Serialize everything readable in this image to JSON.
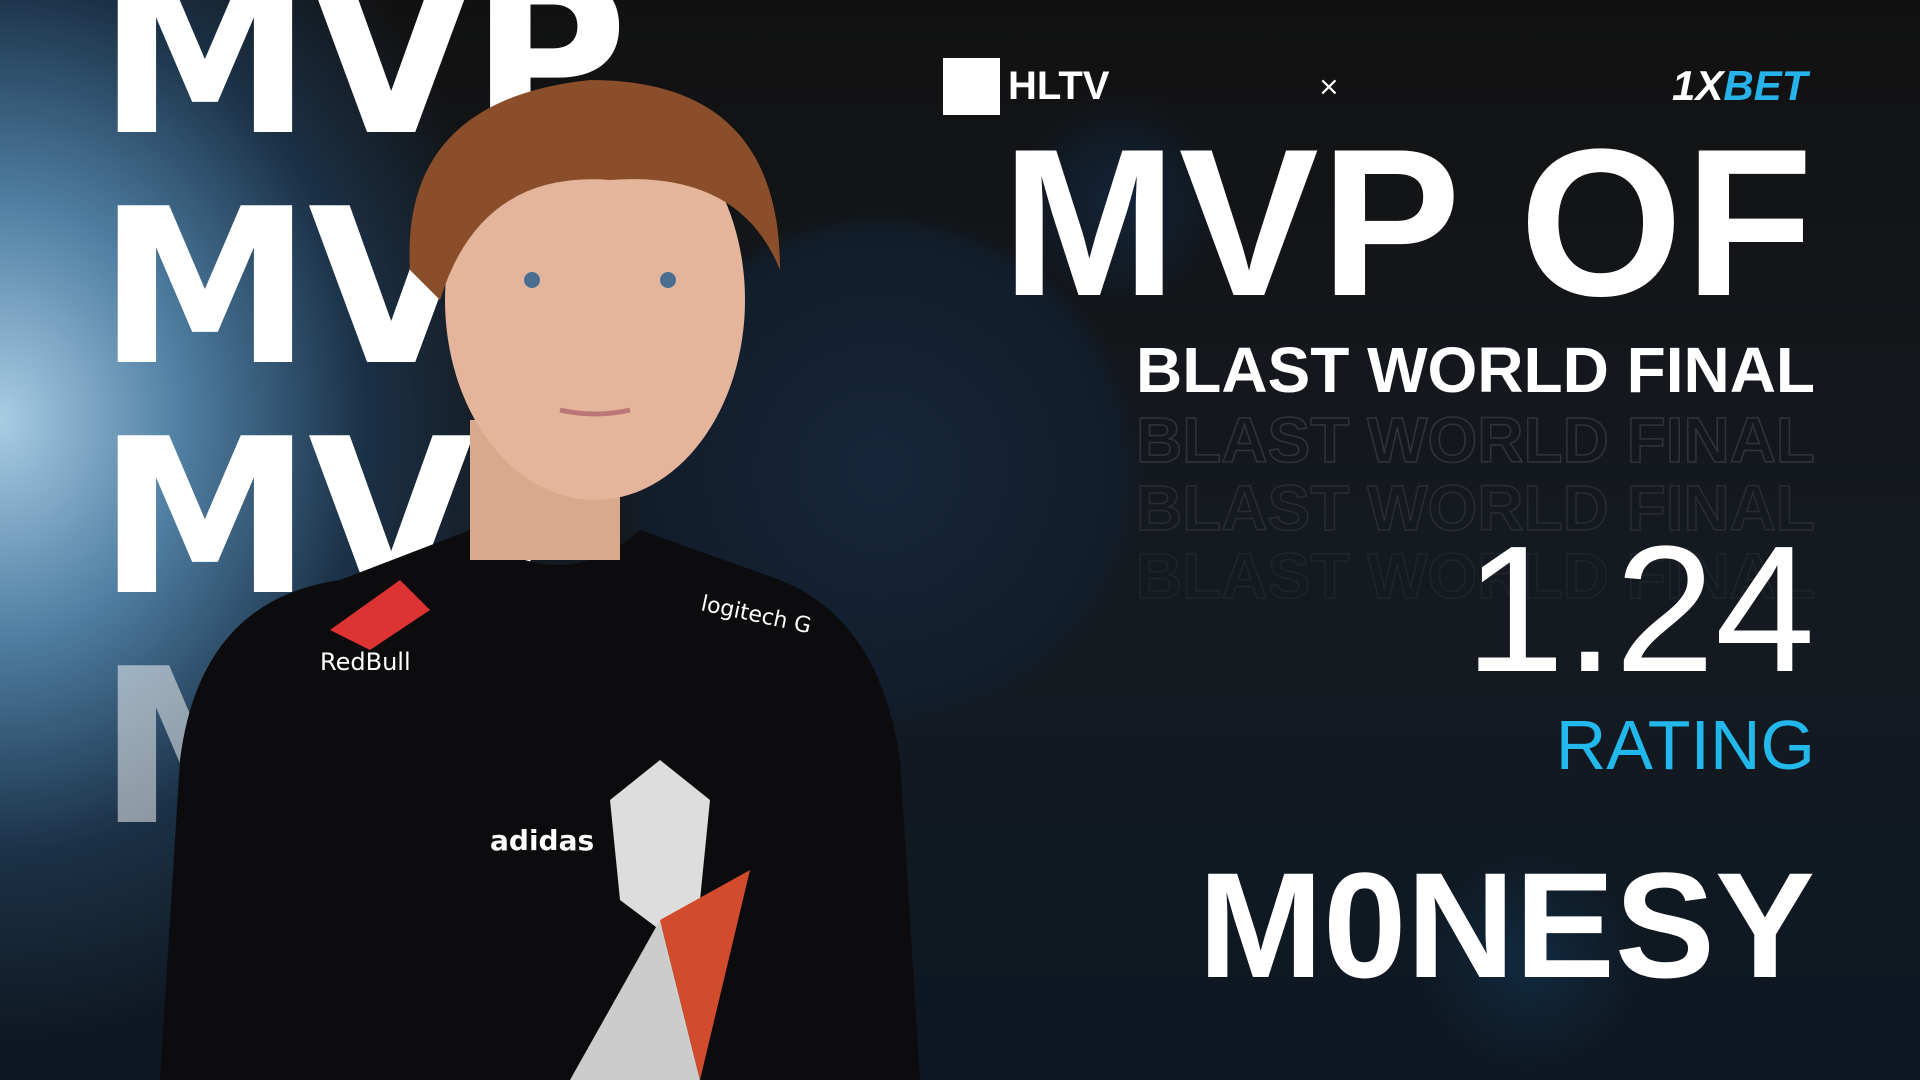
{
  "background_word": "MVP",
  "header": {
    "hltv_logo": "HLTV",
    "separator": "×",
    "sponsor_logo_a": "1X",
    "sponsor_logo_b": "BET"
  },
  "headline": "MVP OF",
  "event": "BLAST WORLD FINAL",
  "rating": {
    "value": "1.24",
    "label": "RATING"
  },
  "player": {
    "name": "M0NESY"
  },
  "jersey": {
    "sponsor_1": "RedBull",
    "sponsor_2": "logitech G",
    "brand": "adidas"
  },
  "colors": {
    "accent": "#22b8ec",
    "text": "#ffffff"
  }
}
